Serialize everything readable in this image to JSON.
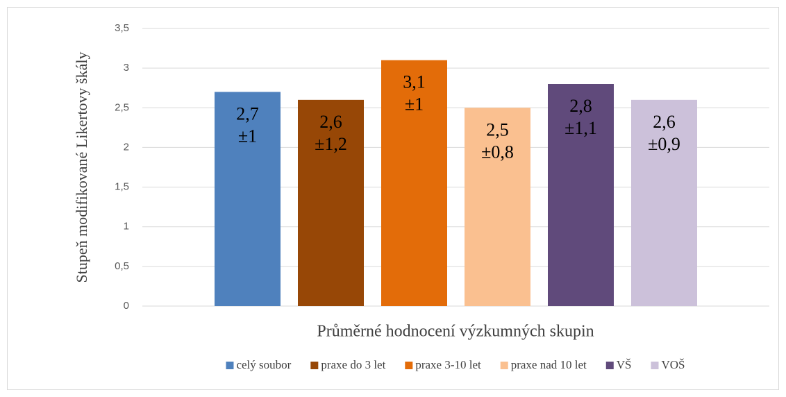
{
  "chart_data": {
    "type": "bar",
    "x_label": "Průměrné hodnocení výzkumných skupin",
    "y_label": "Stupeň modifikované Likertovy škály",
    "categories": [
      null
    ],
    "series": [
      {
        "name": "celý soubor",
        "color": "#4f81bd",
        "values": [
          2.7
        ],
        "value_labels": [
          "2,7"
        ],
        "errors": [
          1
        ],
        "error_labels": [
          "±1"
        ]
      },
      {
        "name": "praxe do 3 let",
        "color": "#974706",
        "values": [
          2.6
        ],
        "value_labels": [
          "2,6"
        ],
        "errors": [
          1.2
        ],
        "error_labels": [
          "±1,2"
        ]
      },
      {
        "name": "praxe 3-10 let",
        "color": "#e36c09",
        "values": [
          3.1
        ],
        "value_labels": [
          "3,1"
        ],
        "errors": [
          1
        ],
        "error_labels": [
          "±1"
        ]
      },
      {
        "name": "praxe nad 10 let",
        "color": "#fac090",
        "values": [
          2.5
        ],
        "value_labels": [
          "2,5"
        ],
        "errors": [
          0.8
        ],
        "error_labels": [
          "±0,8"
        ]
      },
      {
        "name": "VŠ",
        "color": "#604a7b",
        "values": [
          2.8
        ],
        "value_labels": [
          "2,8"
        ],
        "errors": [
          1.1
        ],
        "error_labels": [
          "±1,1"
        ]
      },
      {
        "name": "VOŠ",
        "color": "#ccc1da",
        "values": [
          2.6
        ],
        "value_labels": [
          "2,6"
        ],
        "errors": [
          0.9
        ],
        "error_labels": [
          "±0,9"
        ]
      }
    ],
    "ylim": [
      0,
      3.5
    ],
    "yticks": [
      0,
      {
        "value": 0.5,
        "label": "0,5"
      },
      1,
      {
        "value": 1.5,
        "label": "1,5"
      },
      2,
      {
        "value": 2.5,
        "label": "2,5"
      },
      3,
      {
        "value": 3.5,
        "label": "3,5"
      }
    ],
    "grid": true,
    "legend": "bottom"
  }
}
